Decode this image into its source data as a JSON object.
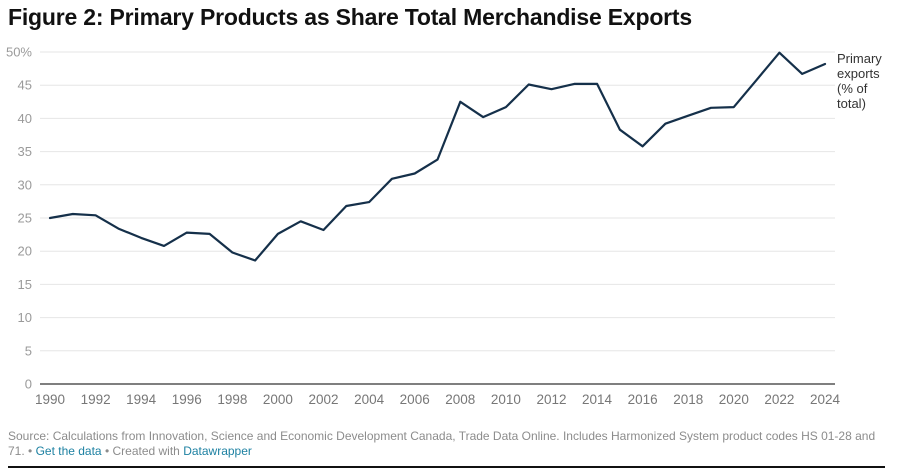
{
  "title": "Figure 2: Primary Products as Share Total Merchandise Exports",
  "footer": {
    "source": "Source: Calculations from Innovation, Science and Economic Development Canada, Trade Data Online. Includes Harmonized System product codes HS 01-28 and 71.",
    "separator": " • ",
    "get_data_link": "Get the data",
    "created_with": "Created with ",
    "datawrapper_link": "Datawrapper"
  },
  "colors": {
    "line": "#15304a",
    "grid": "#e6e6e6",
    "baseline": "#333333",
    "link": "#1d81a2"
  },
  "chart_data": {
    "type": "line",
    "title": "Figure 2: Primary Products as Share Total Merchandise Exports",
    "xlabel": "",
    "ylabel": "",
    "ylim": [
      0,
      50
    ],
    "yticks": [
      0,
      5,
      10,
      15,
      20,
      25,
      30,
      35,
      40,
      45,
      50
    ],
    "ytick_labels": [
      "0",
      "5",
      "10",
      "15",
      "20",
      "25",
      "30",
      "35",
      "40",
      "45",
      "50%"
    ],
    "xlim": [
      1990,
      2024
    ],
    "xticks": [
      1990,
      1992,
      1994,
      1996,
      1998,
      2000,
      2002,
      2004,
      2006,
      2008,
      2010,
      2012,
      2014,
      2016,
      2018,
      2020,
      2022,
      2024
    ],
    "grid": true,
    "legend": "direct label at line end (right)",
    "x": [
      1990,
      1991,
      1992,
      1993,
      1994,
      1995,
      1996,
      1997,
      1998,
      1999,
      2000,
      2001,
      2002,
      2003,
      2004,
      2005,
      2006,
      2007,
      2008,
      2009,
      2010,
      2011,
      2012,
      2013,
      2014,
      2015,
      2016,
      2017,
      2018,
      2019,
      2020,
      2021,
      2022,
      2023,
      2024
    ],
    "series": [
      {
        "name": "Primary exports (% of total)",
        "label_lines": [
          "Primary",
          "exports",
          "(% of",
          "total)"
        ],
        "values": [
          25.0,
          25.6,
          25.4,
          23.4,
          22.0,
          20.8,
          22.8,
          22.6,
          19.8,
          18.6,
          22.6,
          24.5,
          23.2,
          26.8,
          27.4,
          30.9,
          31.7,
          33.8,
          42.5,
          40.2,
          41.7,
          45.1,
          44.4,
          45.2,
          45.2,
          38.3,
          35.8,
          39.2,
          40.4,
          41.6,
          41.7,
          45.8,
          49.9,
          46.7,
          48.2
        ]
      }
    ]
  }
}
